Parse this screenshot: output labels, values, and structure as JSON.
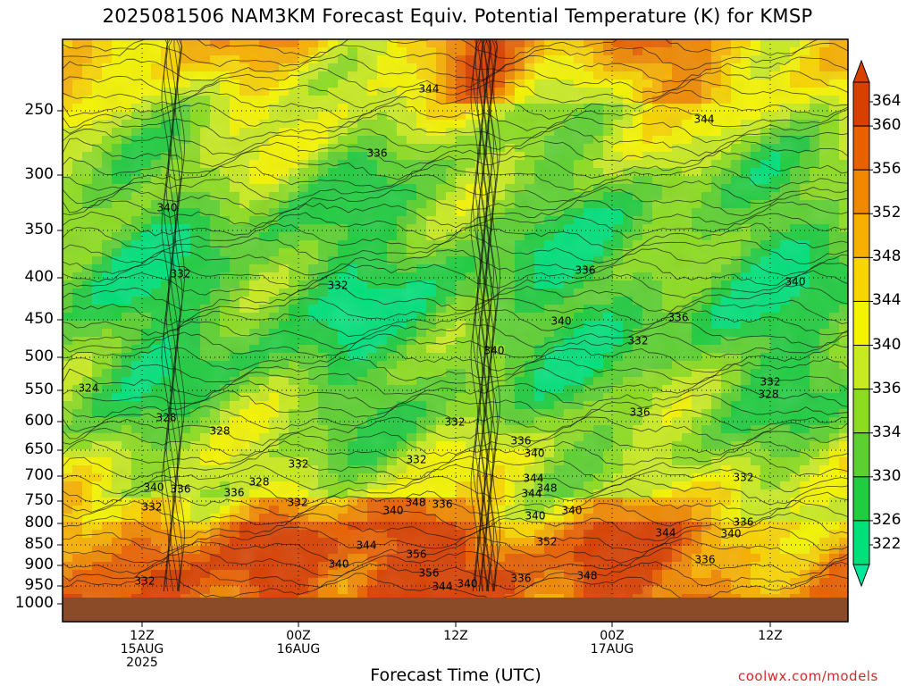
{
  "title": "2025081506 NAM3KM Forecast Equiv. Potential Temperature (K) for KMSP",
  "xaxis_title": "Forecast Time (UTC)",
  "brand": "coolwx.com/models",
  "colors": {
    "ground": "#8b4a28",
    "bands": [
      "#00e07a",
      "#20cc40",
      "#5cd030",
      "#8cdc20",
      "#c8ea20",
      "#f4f400",
      "#f8d400",
      "#f8b000",
      "#f08800",
      "#e86000",
      "#d84000"
    ]
  },
  "chart_data": {
    "type": "heatmap",
    "title": "2025081506 NAM3KM Forecast Equiv. Potential Temperature (K) for KMSP",
    "xlabel": "Forecast Time (UTC)",
    "ylabel": "",
    "y_scale": "log-pressure",
    "ylim": [
      1000,
      200
    ],
    "y_ticks": [
      "250",
      "300",
      "350",
      "400",
      "450",
      "500",
      "550",
      "600",
      "650",
      "700",
      "750",
      "800",
      "850",
      "900",
      "950",
      "1000"
    ],
    "x_ticks": [
      {
        "line1": "12Z",
        "line2": "15AUG",
        "line3": "2025"
      },
      {
        "line1": "00Z",
        "line2": "16AUG",
        "line3": ""
      },
      {
        "line1": "12Z",
        "line2": "",
        "line3": ""
      },
      {
        "line1": "00Z",
        "line2": "17AUG",
        "line3": ""
      },
      {
        "line1": "12Z",
        "line2": "",
        "line3": ""
      }
    ],
    "colorbar_levels": [
      "364",
      "360",
      "356",
      "352",
      "348",
      "344",
      "340",
      "336",
      "334",
      "330",
      "326",
      "322"
    ],
    "contour_labels": [
      "344",
      "344",
      "336",
      "340",
      "332",
      "332",
      "336",
      "340",
      "340",
      "336",
      "332",
      "324",
      "328",
      "328",
      "332",
      "332",
      "332",
      "336",
      "336",
      "340",
      "336",
      "328",
      "332",
      "340",
      "348",
      "336",
      "340",
      "344",
      "348",
      "352",
      "340",
      "344",
      "356",
      "340",
      "356",
      "344",
      "340",
      "336",
      "348",
      "344",
      "340",
      "336",
      "336",
      "332",
      "328",
      "332",
      "332",
      "340",
      "336",
      "332",
      "344",
      "340"
    ],
    "grid": true
  }
}
